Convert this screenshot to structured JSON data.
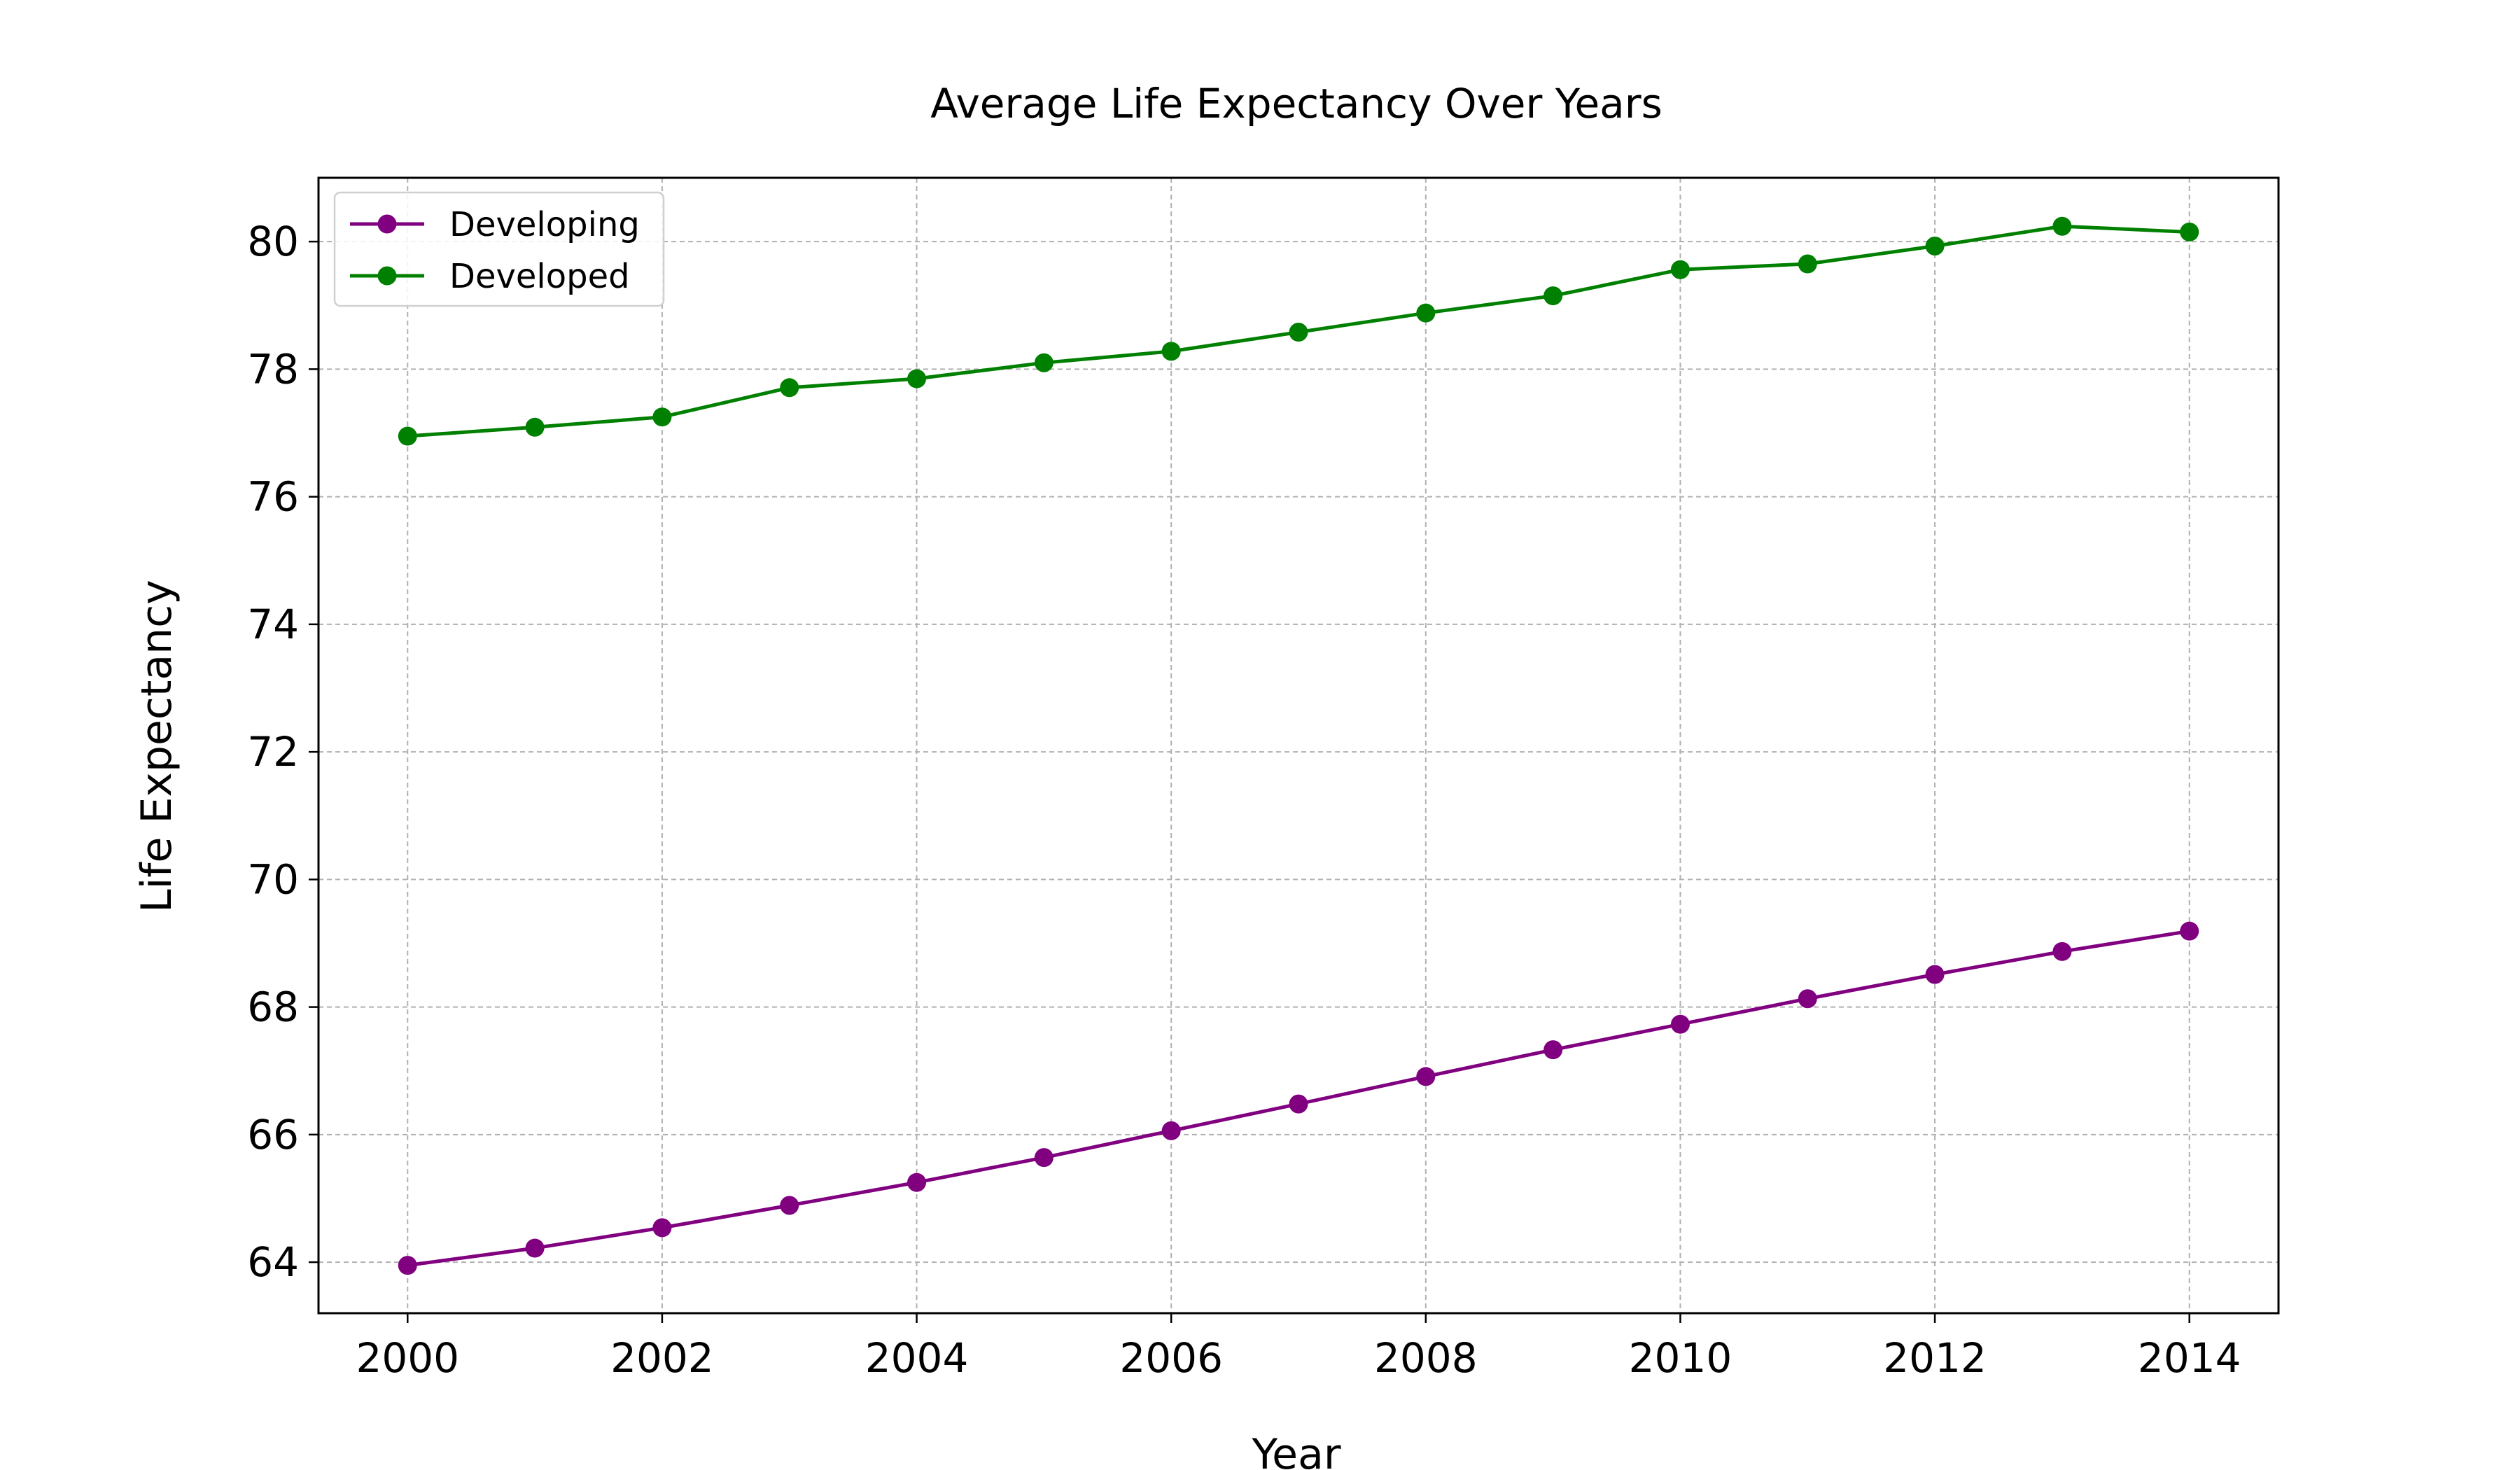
{
  "chart_data": {
    "type": "line",
    "title": "Average Life Expectancy Over Years",
    "xlabel": "Year",
    "ylabel": "Life Expectancy",
    "x": [
      2000,
      2001,
      2002,
      2003,
      2004,
      2005,
      2006,
      2007,
      2008,
      2009,
      2010,
      2011,
      2012,
      2013,
      2014
    ],
    "xlim": [
      1999.3,
      2014.7
    ],
    "ylim": [
      63.2,
      81.0
    ],
    "xticks": [
      2000,
      2002,
      2004,
      2006,
      2008,
      2010,
      2012,
      2014
    ],
    "yticks": [
      64,
      66,
      68,
      70,
      72,
      74,
      76,
      78,
      80
    ],
    "grid": true,
    "legend_position": "upper-left",
    "series": [
      {
        "name": "Developing",
        "color": "#800080",
        "marker": "circle",
        "values": [
          63.95,
          64.22,
          64.54,
          64.89,
          65.25,
          65.64,
          66.06,
          66.48,
          66.91,
          67.33,
          67.73,
          68.13,
          68.51,
          68.87,
          69.19
        ]
      },
      {
        "name": "Developed",
        "color": "#008000",
        "marker": "circle",
        "values": [
          76.95,
          77.09,
          77.25,
          77.71,
          77.85,
          78.1,
          78.28,
          78.58,
          78.88,
          79.15,
          79.56,
          79.65,
          79.93,
          80.24,
          80.15
        ]
      }
    ]
  }
}
